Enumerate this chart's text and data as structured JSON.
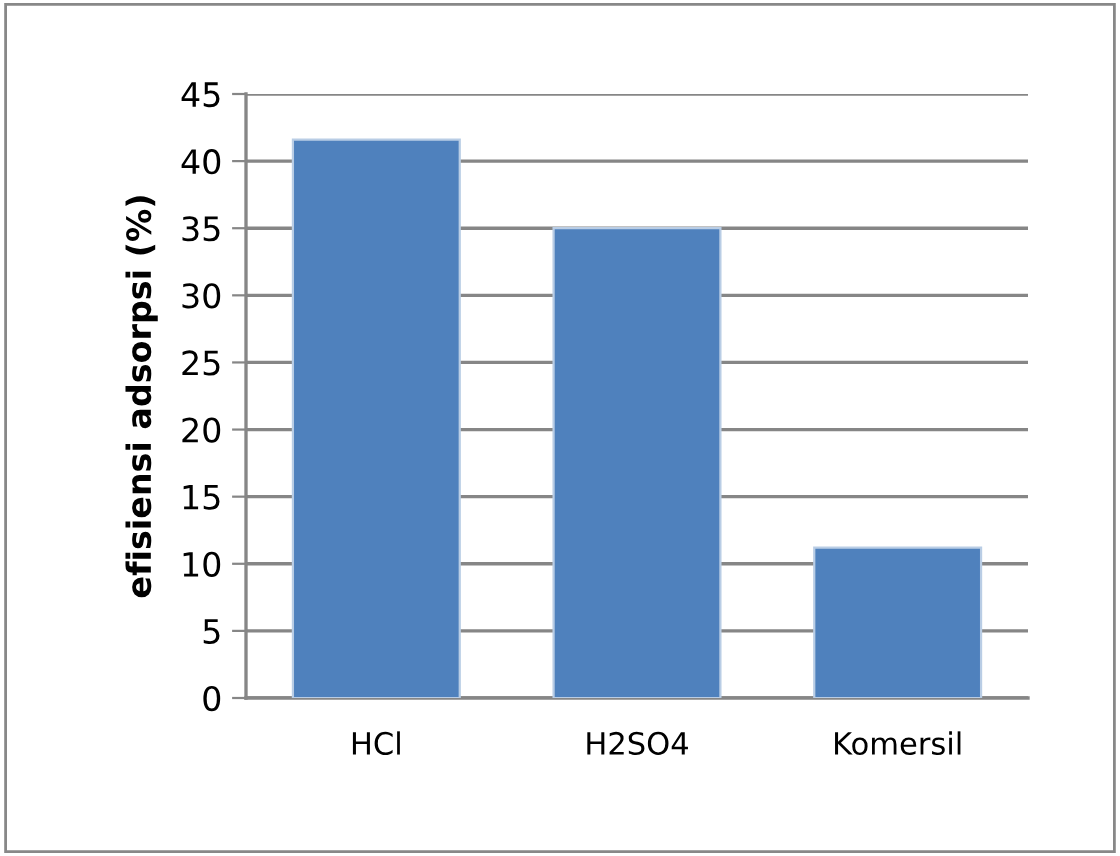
{
  "chart_data": {
    "type": "bar",
    "ylabel": "efisiensi adsorpsi (%)",
    "categories": [
      "HCl",
      "H2SO4",
      "Komersil"
    ],
    "values": [
      41.6,
      35.0,
      11.2
    ],
    "color": "#4f81bd",
    "ylim": [
      0,
      45
    ],
    "yticks": [
      0,
      5,
      10,
      15,
      20,
      25,
      30,
      35,
      40,
      45
    ],
    "grid": "y",
    "legend": false
  }
}
